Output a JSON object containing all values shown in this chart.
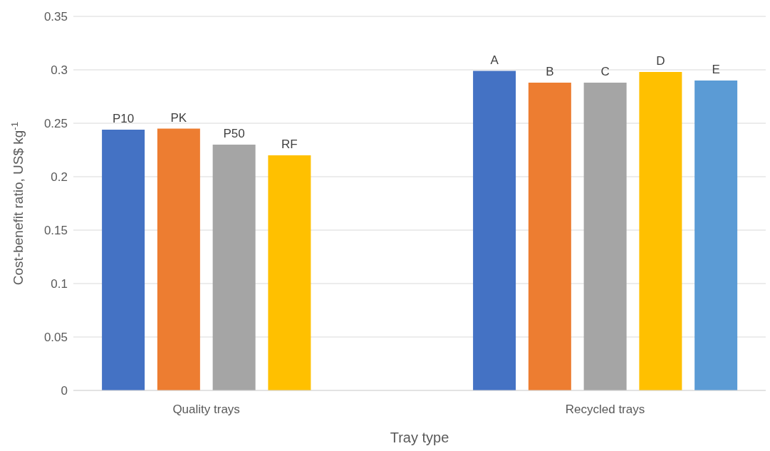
{
  "chart_data": {
    "type": "bar",
    "xlabel": "Tray type",
    "ylabel": "Cost-benefit ratio, US$ kg$^{-1}$",
    "categories": [
      "Quality trays",
      "Recycled trays"
    ],
    "series": [
      {
        "name": "P10",
        "color": "#4472c4",
        "values": [
          0.244,
          null
        ]
      },
      {
        "name": "PK",
        "color": "#ed7d31",
        "values": [
          0.245,
          null
        ]
      },
      {
        "name": "P50",
        "color": "#a5a5a5",
        "values": [
          0.23,
          null
        ]
      },
      {
        "name": "RF",
        "color": "#ffc000",
        "values": [
          0.22,
          null
        ]
      },
      {
        "name": "A",
        "color": "#4472c4",
        "values": [
          null,
          0.299
        ]
      },
      {
        "name": "B",
        "color": "#ed7d31",
        "values": [
          null,
          0.288
        ]
      },
      {
        "name": "C",
        "color": "#a5a5a5",
        "values": [
          null,
          0.288
        ]
      },
      {
        "name": "D",
        "color": "#ffc000",
        "values": [
          null,
          0.298
        ]
      },
      {
        "name": "E",
        "color": "#5b9bd5",
        "values": [
          null,
          0.29
        ]
      }
    ],
    "ylim": [
      0,
      0.35
    ],
    "yticks": [
      0,
      0.05,
      0.1,
      0.15,
      0.2,
      0.25,
      0.3,
      0.35
    ],
    "grid": "y",
    "legend": false
  }
}
